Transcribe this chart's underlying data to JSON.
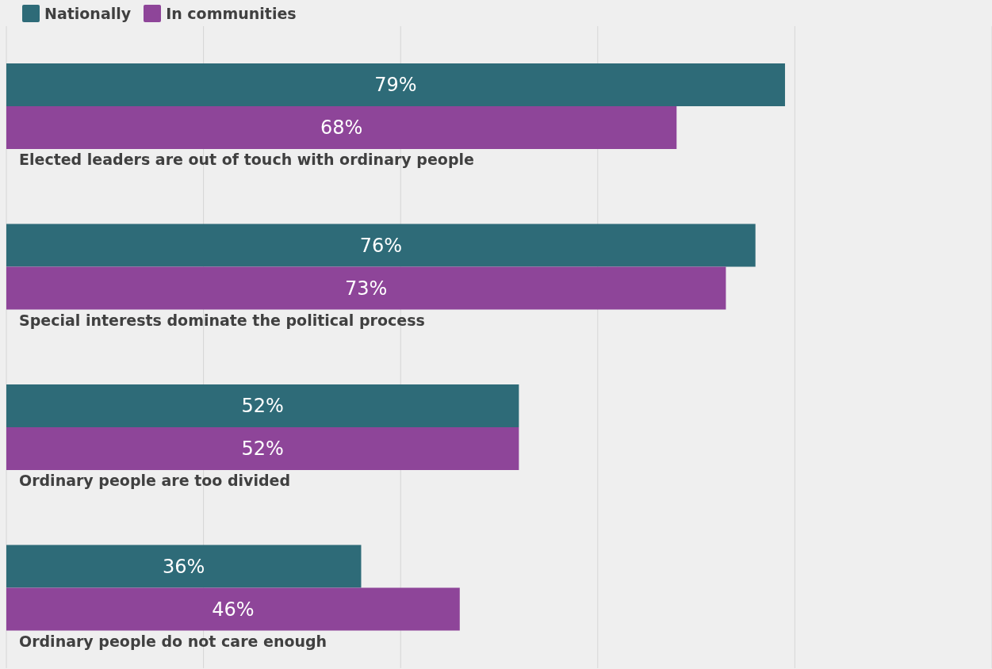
{
  "chart_data": {
    "type": "bar",
    "orientation": "horizontal",
    "categories": [
      "Elected leaders are out of touch with ordinary people",
      "Special interests dominate the political process",
      "Ordinary people are too divided",
      "Ordinary people do not care enough"
    ],
    "series": [
      {
        "name": "Nationally",
        "color": "#2e6b78",
        "values": [
          79,
          76,
          52,
          36
        ],
        "value_labels": [
          "79%",
          "76%",
          "52%",
          "36%"
        ]
      },
      {
        "name": "In communities",
        "color": "#8e4599",
        "values": [
          68,
          73,
          52,
          46
        ],
        "value_labels": [
          "68%",
          "73%",
          "52%",
          "46%"
        ]
      }
    ],
    "xlim": [
      0,
      100
    ],
    "grid": "x",
    "legend": "top left",
    "tick_labels": "y"
  }
}
